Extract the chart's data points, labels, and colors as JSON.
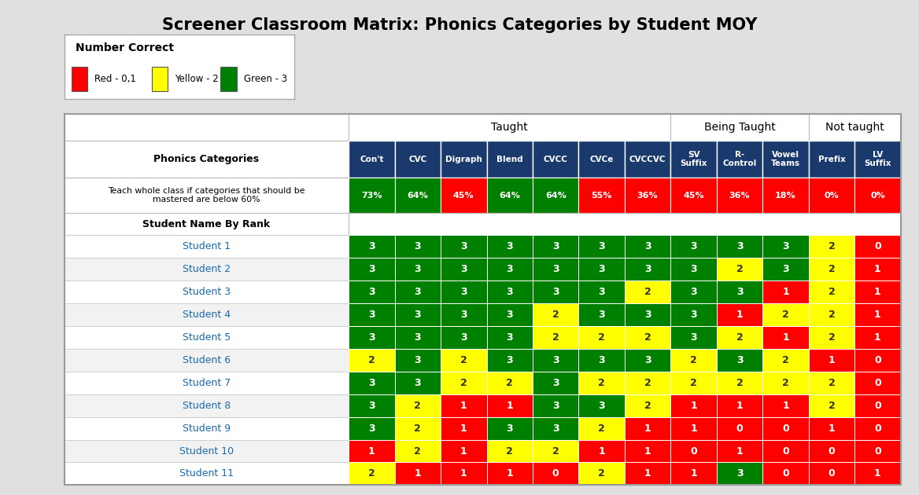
{
  "title": "Screener Classroom Matrix: Phonics Categories by Student MOY",
  "legend_title": "Number Correct",
  "legend_items": [
    {
      "color": "#FF0000",
      "label": "Red - 0,1"
    },
    {
      "color": "#FFFF00",
      "label": "Yellow - 2"
    },
    {
      "color": "#008000",
      "label": "Green - 3"
    }
  ],
  "col_headers": [
    "Con't",
    "CVC",
    "Digraph",
    "Blend",
    "CVCC",
    "CVCe",
    "CVCCVC",
    "SV\nSuffix",
    "R-\nControl",
    "Vowel\nTeams",
    "Prefix",
    "LV\nSuffix"
  ],
  "section_info": [
    {
      "name": "Taught",
      "span": 7
    },
    {
      "name": "Being Taught",
      "span": 3
    },
    {
      "name": "Not taught",
      "span": 2
    }
  ],
  "pct_row_label": "Teach whole class if categories that should be\nmastered are below 60%",
  "pct_values": [
    "73%",
    "64%",
    "45%",
    "64%",
    "64%",
    "55%",
    "36%",
    "45%",
    "36%",
    "18%",
    "0%",
    "0%"
  ],
  "pct_colors": [
    "#008000",
    "#008000",
    "#FF0000",
    "#008000",
    "#008000",
    "#FF0000",
    "#FF0000",
    "#FF0000",
    "#FF0000",
    "#FF0000",
    "#FF0000",
    "#FF0000"
  ],
  "student_label": "Student Name By Rank",
  "students": [
    "Student 1",
    "Student 2",
    "Student 3",
    "Student 4",
    "Student 5",
    "Student 6",
    "Student 7",
    "Student 8",
    "Student 9",
    "Student 10",
    "Student 11"
  ],
  "grid": [
    [
      3,
      3,
      3,
      3,
      3,
      3,
      3,
      3,
      3,
      3,
      2,
      0
    ],
    [
      3,
      3,
      3,
      3,
      3,
      3,
      3,
      3,
      2,
      3,
      2,
      1
    ],
    [
      3,
      3,
      3,
      3,
      3,
      3,
      2,
      3,
      3,
      1,
      2,
      1
    ],
    [
      3,
      3,
      3,
      3,
      2,
      3,
      3,
      3,
      1,
      2,
      2,
      1
    ],
    [
      3,
      3,
      3,
      3,
      2,
      2,
      2,
      3,
      2,
      1,
      2,
      1
    ],
    [
      2,
      3,
      2,
      3,
      3,
      3,
      3,
      2,
      3,
      2,
      1,
      0
    ],
    [
      3,
      3,
      2,
      2,
      3,
      2,
      2,
      2,
      2,
      2,
      2,
      0
    ],
    [
      3,
      2,
      1,
      1,
      3,
      3,
      2,
      1,
      1,
      1,
      2,
      0
    ],
    [
      3,
      2,
      1,
      3,
      3,
      2,
      1,
      1,
      0,
      0,
      1,
      0
    ],
    [
      1,
      2,
      1,
      2,
      2,
      1,
      1,
      0,
      1,
      0,
      0,
      0
    ],
    [
      2,
      1,
      1,
      1,
      0,
      2,
      1,
      1,
      3,
      0,
      0,
      1
    ]
  ],
  "value_colors": {
    "0": "#FF0000",
    "1": "#FF0000",
    "2": "#FFFF00",
    "3": "#008000"
  },
  "header_bg": "#1a3a6e",
  "header_text": "#FFFFFF",
  "row_label_color": "#1a6aaa",
  "outer_bg": "#e0e0e0",
  "pct_text_color": "#FFFFFF",
  "phonics_categories_fontsize": 9,
  "title_fontsize": 15,
  "col_header_fontsize": 7.5,
  "pct_fontsize": 8,
  "student_fontsize": 9,
  "cell_fontsize": 9
}
